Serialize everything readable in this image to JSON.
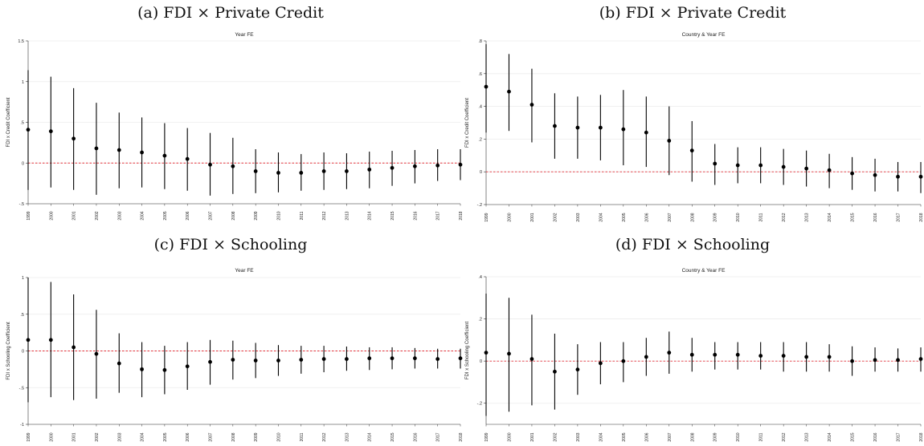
{
  "chart_data": [
    {
      "type": "scatter",
      "heading": "(a) FDI × Private Credit",
      "title": "Year FE",
      "ylabel": "FDI x Credit Coefficient",
      "ylim": [
        -0.5,
        1.5
      ],
      "ytick_values": [
        -0.5,
        0,
        0.5,
        1,
        1.5
      ],
      "ytick_labels": [
        "-.5",
        "0",
        ".5",
        "1",
        "1.5"
      ],
      "reference_line": 0,
      "categories": [
        "1999",
        "2000",
        "2001",
        "2002",
        "2003",
        "2004",
        "2005",
        "2006",
        "2007",
        "2008",
        "2009",
        "2010",
        "2011",
        "2012",
        "2013",
        "2014",
        "2015",
        "2016",
        "2017",
        "2018"
      ],
      "estimates": [
        0.41,
        0.39,
        0.3,
        0.18,
        0.16,
        0.13,
        0.09,
        0.05,
        -0.02,
        -0.04,
        -0.1,
        -0.12,
        -0.12,
        -0.1,
        -0.1,
        -0.08,
        -0.06,
        -0.04,
        -0.03,
        -0.02
      ],
      "ci_low": [
        -0.33,
        -0.3,
        -0.33,
        -0.39,
        -0.31,
        -0.3,
        -0.32,
        -0.34,
        -0.4,
        -0.38,
        -0.37,
        -0.36,
        -0.34,
        -0.33,
        -0.32,
        -0.31,
        -0.28,
        -0.25,
        -0.22,
        -0.21
      ],
      "ci_high": [
        1.14,
        1.06,
        0.92,
        0.74,
        0.62,
        0.56,
        0.49,
        0.43,
        0.37,
        0.31,
        0.17,
        0.13,
        0.11,
        0.13,
        0.12,
        0.14,
        0.15,
        0.16,
        0.17,
        0.17
      ]
    },
    {
      "type": "scatter",
      "heading": "(b) FDI × Private Credit",
      "title": "Country & Year FE",
      "ylabel": "FDI x Credit Coefficient",
      "ylim": [
        -0.2,
        0.8
      ],
      "ytick_values": [
        -0.2,
        0,
        0.2,
        0.4,
        0.6,
        0.8
      ],
      "ytick_labels": [
        "-.2",
        "0",
        ".2",
        ".4",
        ".6",
        ".8"
      ],
      "reference_line": 0,
      "categories": [
        "1999",
        "2000",
        "2001",
        "2002",
        "2003",
        "2004",
        "2005",
        "2006",
        "2007",
        "2008",
        "2009",
        "2010",
        "2011",
        "2012",
        "2013",
        "2014",
        "2015",
        "2016",
        "2017",
        "2018"
      ],
      "estimates": [
        0.52,
        0.49,
        0.41,
        0.28,
        0.27,
        0.27,
        0.26,
        0.24,
        0.19,
        0.13,
        0.05,
        0.04,
        0.04,
        0.03,
        0.02,
        0.01,
        -0.01,
        -0.02,
        -0.03,
        -0.03
      ],
      "ci_low": [
        0.24,
        0.25,
        0.18,
        0.08,
        0.08,
        0.07,
        0.04,
        0.03,
        -0.02,
        -0.06,
        -0.08,
        -0.07,
        -0.07,
        -0.08,
        -0.09,
        -0.1,
        -0.11,
        -0.12,
        -0.12,
        -0.13
      ],
      "ci_high": [
        0.78,
        0.72,
        0.63,
        0.48,
        0.46,
        0.47,
        0.5,
        0.46,
        0.4,
        0.31,
        0.17,
        0.15,
        0.15,
        0.14,
        0.13,
        0.11,
        0.09,
        0.08,
        0.06,
        0.06
      ]
    },
    {
      "type": "scatter",
      "heading": "(c) FDI × Schooling",
      "title": "Year FE",
      "ylabel": "FDI x Schooling Coefficient",
      "ylim": [
        -1,
        1
      ],
      "ytick_values": [
        -1,
        -0.5,
        0,
        0.5,
        1
      ],
      "ytick_labels": [
        "-1",
        "-.5",
        "0",
        ".5",
        "1"
      ],
      "reference_line": 0,
      "categories": [
        "1999",
        "2000",
        "2001",
        "2002",
        "2003",
        "2004",
        "2005",
        "2006",
        "2007",
        "2008",
        "2009",
        "2010",
        "2011",
        "2012",
        "2013",
        "2014",
        "2015",
        "2016",
        "2017",
        "2018"
      ],
      "estimates": [
        0.15,
        0.15,
        0.05,
        -0.04,
        -0.17,
        -0.25,
        -0.26,
        -0.21,
        -0.15,
        -0.12,
        -0.13,
        -0.13,
        -0.12,
        -0.11,
        -0.11,
        -0.1,
        -0.1,
        -0.1,
        -0.11,
        -0.1
      ],
      "ci_low": [
        -0.7,
        -0.63,
        -0.67,
        -0.65,
        -0.57,
        -0.63,
        -0.59,
        -0.53,
        -0.46,
        -0.39,
        -0.37,
        -0.34,
        -0.31,
        -0.29,
        -0.27,
        -0.26,
        -0.25,
        -0.24,
        -0.24,
        -0.24
      ],
      "ci_high": [
        1.0,
        0.94,
        0.77,
        0.56,
        0.24,
        0.12,
        0.07,
        0.12,
        0.15,
        0.14,
        0.11,
        0.08,
        0.07,
        0.07,
        0.06,
        0.05,
        0.05,
        0.04,
        0.03,
        0.03
      ]
    },
    {
      "type": "scatter",
      "heading": "(d) FDI × Schooling",
      "title": "Country & Year FE",
      "ylabel": "FDI x Schooling Coefficient",
      "ylim": [
        -0.3,
        0.4
      ],
      "ytick_values": [
        -0.2,
        0,
        0.2,
        0.4
      ],
      "ytick_labels": [
        "-.2",
        "0",
        ".2",
        ".4"
      ],
      "reference_line": 0,
      "categories": [
        "1999",
        "2000",
        "2001",
        "2002",
        "2003",
        "2004",
        "2005",
        "2006",
        "2007",
        "2008",
        "2009",
        "2010",
        "2011",
        "2012",
        "2013",
        "2014",
        "2015",
        "2016",
        "2017",
        "2018"
      ],
      "estimates": [
        0.04,
        0.035,
        0.01,
        -0.05,
        -0.04,
        -0.01,
        0.0,
        0.02,
        0.04,
        0.03,
        0.03,
        0.03,
        0.025,
        0.025,
        0.02,
        0.02,
        0.0,
        0.005,
        0.005,
        0.01
      ],
      "ci_low": [
        -0.26,
        -0.24,
        -0.21,
        -0.23,
        -0.16,
        -0.11,
        -0.1,
        -0.07,
        -0.06,
        -0.05,
        -0.04,
        -0.04,
        -0.04,
        -0.05,
        -0.05,
        -0.05,
        -0.07,
        -0.05,
        -0.05,
        -0.05
      ],
      "ci_high": [
        0.32,
        0.3,
        0.22,
        0.13,
        0.08,
        0.09,
        0.09,
        0.11,
        0.14,
        0.11,
        0.09,
        0.09,
        0.09,
        0.09,
        0.09,
        0.08,
        0.07,
        0.065,
        0.06,
        0.065
      ]
    }
  ],
  "colors": {
    "marker": "#000000",
    "reference_line": "#e4323a",
    "gridline": "#ececec",
    "axis": "#333333"
  }
}
